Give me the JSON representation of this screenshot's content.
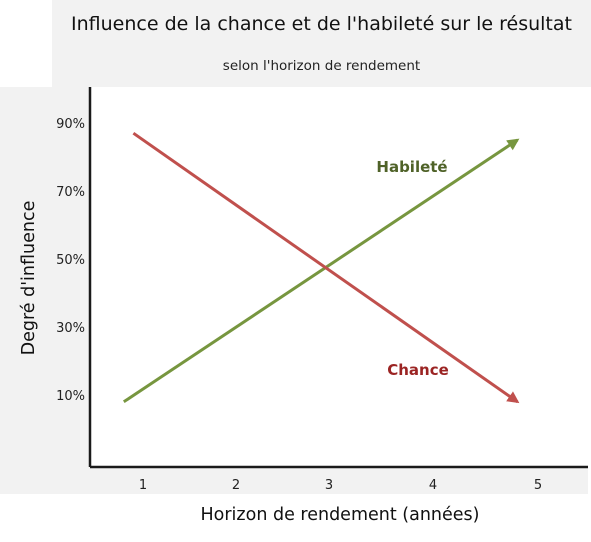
{
  "chart_data": {
    "type": "line",
    "title": "Influence de la chance et de l'habileté sur le résultat",
    "subtitle": "selon l'horizon de rendement",
    "xlabel": "Horizon de rendement (années)",
    "ylabel": "Degré d'influence",
    "x_ticks": [
      "1",
      "2",
      "3",
      "4",
      "5"
    ],
    "x_tick_values": [
      1,
      2,
      3,
      4,
      5
    ],
    "y_ticks": [
      "10%",
      "30%",
      "50%",
      "70%",
      "90%"
    ],
    "y_tick_values": [
      10,
      30,
      50,
      70,
      90
    ],
    "xlim": [
      0.5,
      5.5
    ],
    "ylim": [
      -10,
      100
    ],
    "grid": false,
    "series": [
      {
        "name": "Habileté",
        "x": [
          0.8,
          4.9
        ],
        "y": [
          8,
          85
        ],
        "color": "#77963f",
        "arrow": true
      },
      {
        "name": "Chance",
        "x": [
          0.9,
          4.9
        ],
        "y": [
          87,
          8
        ],
        "color": "#c0504d",
        "arrow": true
      }
    ],
    "label_colors": {
      "Habileté": "#4f6228",
      "Chance": "#9b2423"
    }
  }
}
